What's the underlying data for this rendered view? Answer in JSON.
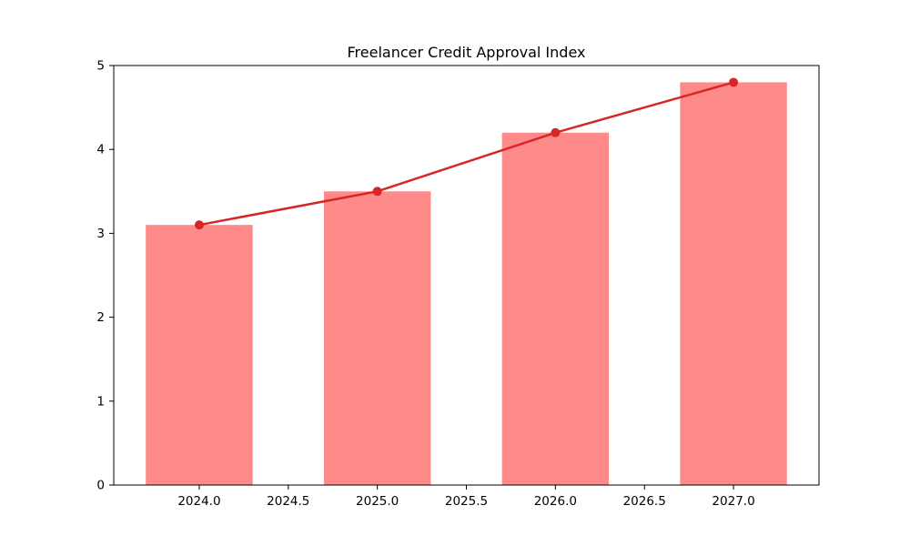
{
  "chart_data": {
    "type": "bar",
    "title": "Freelancer Credit Approval Index",
    "xlabel": "",
    "ylabel": "",
    "x": [
      2024,
      2025,
      2026,
      2027
    ],
    "series": [
      {
        "name": "approval-index-bars",
        "type": "bar",
        "values": [
          3.1,
          3.5,
          4.2,
          4.8
        ],
        "color": "#ff8a8a",
        "bar_width": 0.6
      },
      {
        "name": "approval-index-line",
        "type": "line",
        "values": [
          3.1,
          3.5,
          4.2,
          4.8
        ],
        "color": "#d62728",
        "marker": "circle",
        "line_width": 2.5,
        "marker_radius": 5
      }
    ],
    "xlim": [
      2023.52,
      2027.48
    ],
    "ylim": [
      0,
      5
    ],
    "yticks": [
      0,
      1,
      2,
      3,
      4,
      5
    ],
    "ytick_labels": [
      "0",
      "1",
      "2",
      "3",
      "4",
      "5"
    ],
    "xticks": [
      2024.0,
      2024.5,
      2025.0,
      2025.5,
      2026.0,
      2026.5,
      2027.0
    ],
    "xtick_labels": [
      "2024.0",
      "2024.5",
      "2025.0",
      "2025.5",
      "2026.0",
      "2026.5",
      "2027.0"
    ],
    "grid": false,
    "legend": "none",
    "spine_color": "#000000",
    "background": "#ffffff"
  }
}
